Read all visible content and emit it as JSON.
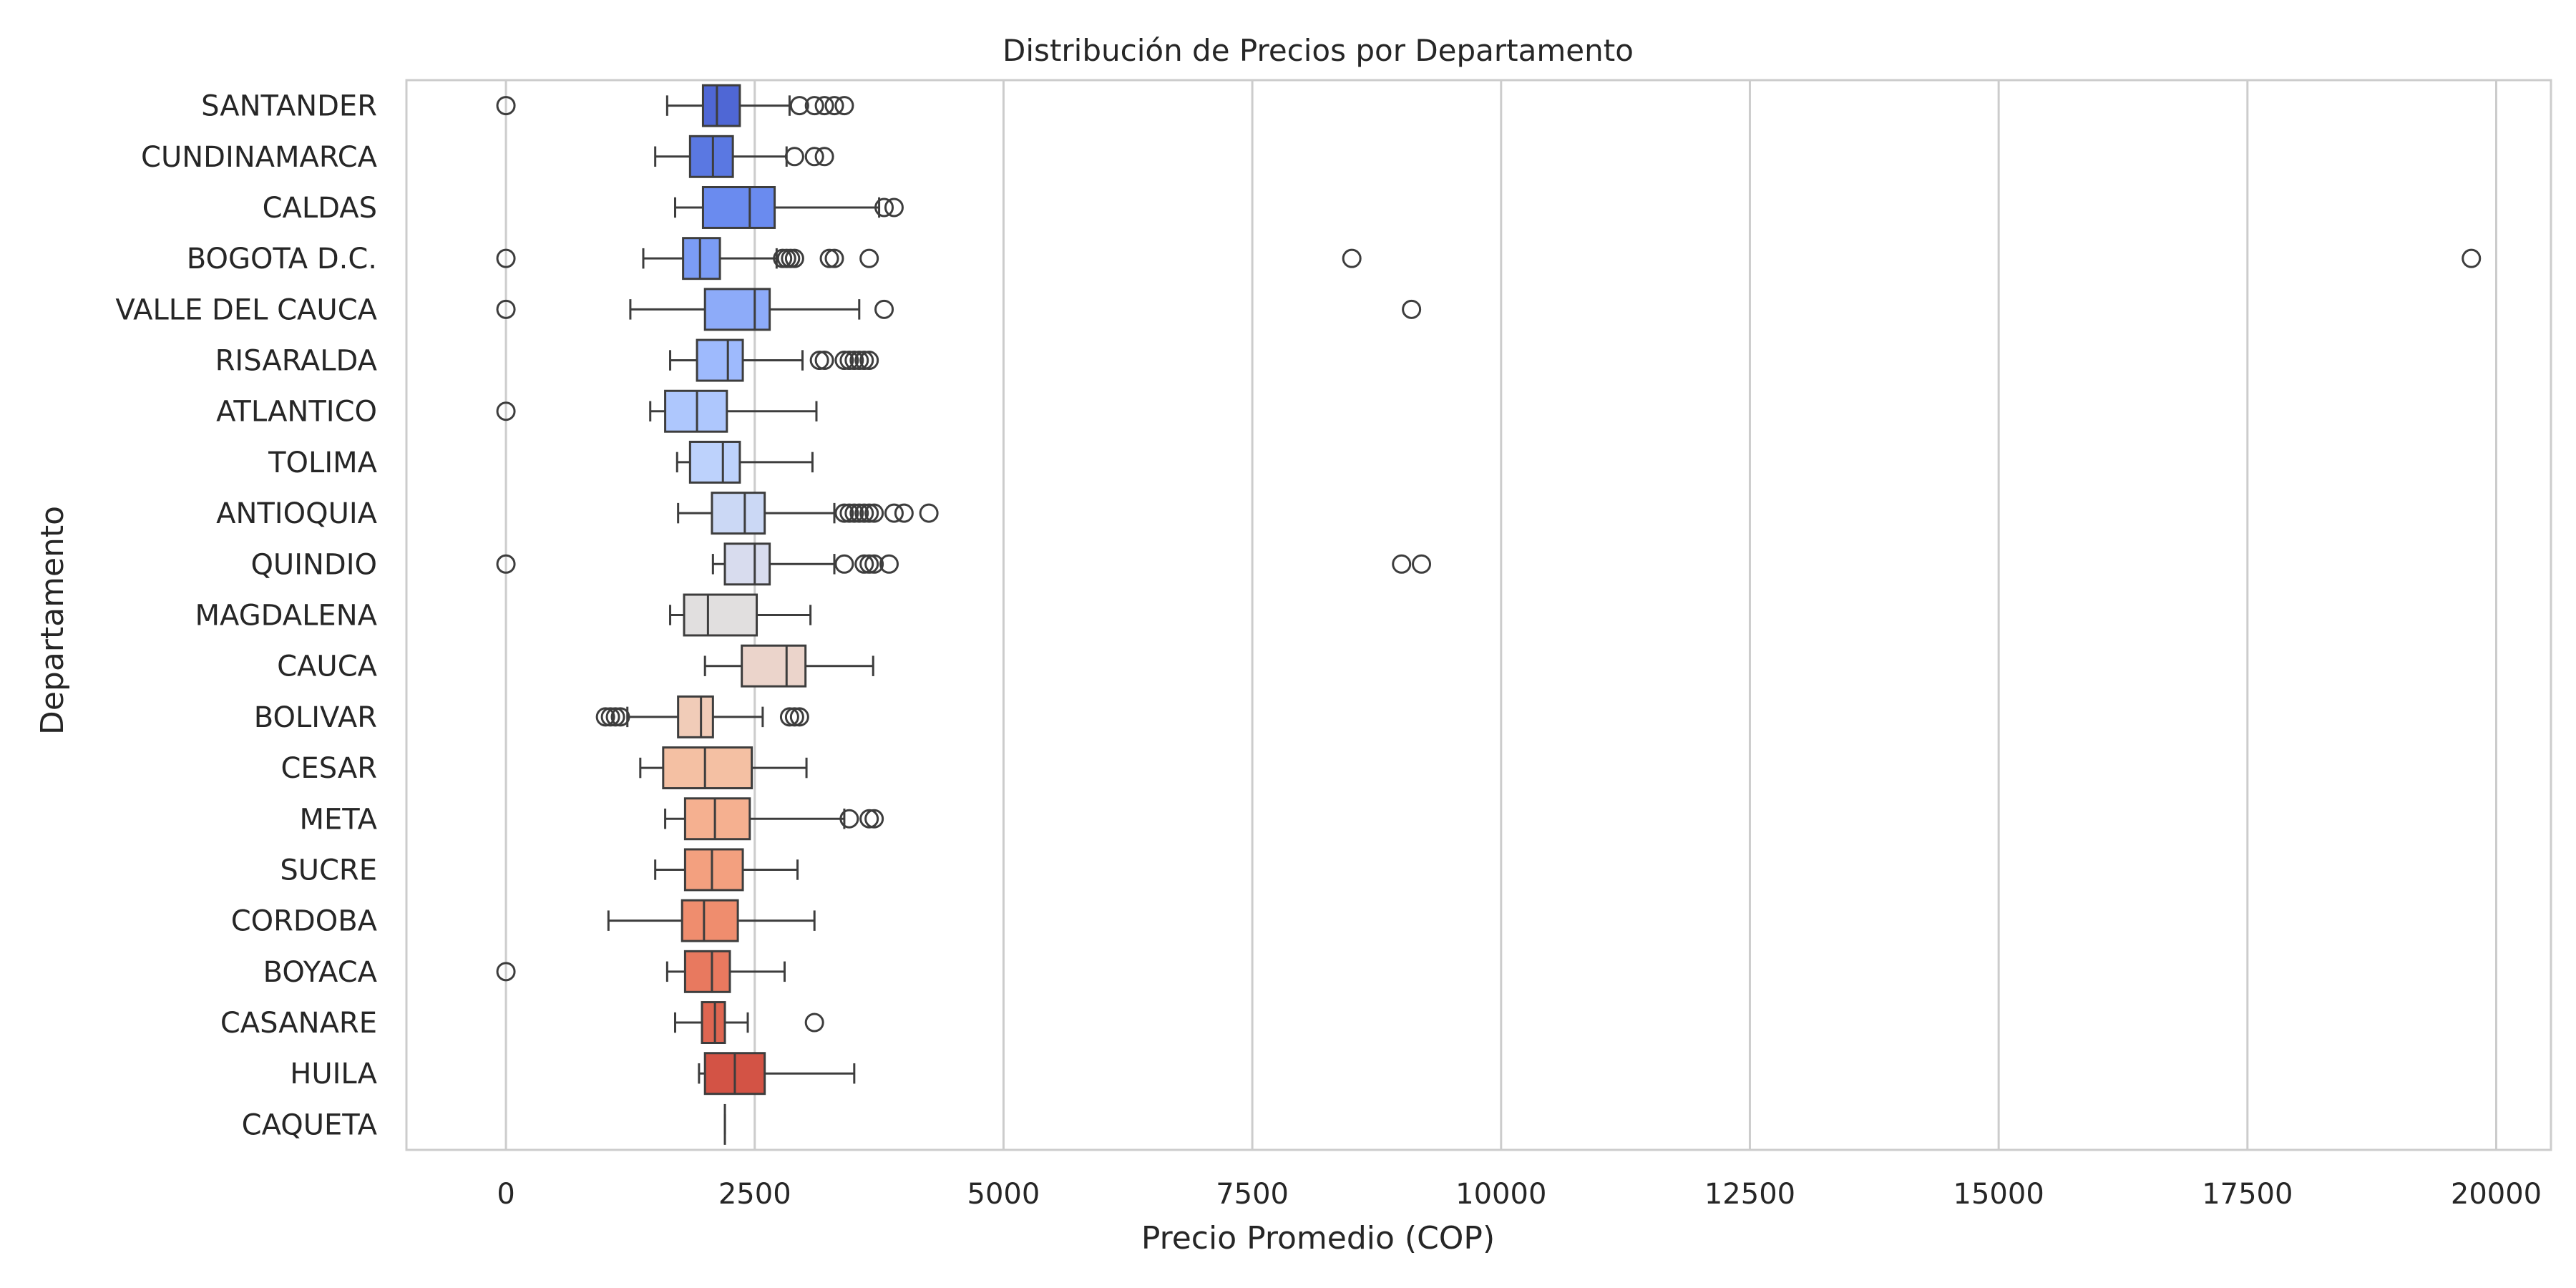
{
  "chart_data": {
    "type": "box",
    "orientation": "horizontal",
    "title": "Distribución de Precios por Departamento",
    "xlabel": "Precio Promedio (COP)",
    "ylabel": "Departamento",
    "xlim": [
      -1000,
      20550
    ],
    "xticks": [
      0,
      2500,
      5000,
      7500,
      10000,
      12500,
      15000,
      17500,
      20000
    ],
    "grid": "vertical",
    "palette": "coolwarm",
    "categories": [
      "SANTANDER",
      "CUNDINAMARCA",
      "CALDAS",
      "BOGOTA D.C.",
      "VALLE DEL CAUCA",
      "RISARALDA",
      "ATLANTICO",
      "TOLIMA",
      "ANTIOQUIA",
      "QUINDIO",
      "MAGDALENA",
      "CAUCA",
      "BOLIVAR",
      "CESAR",
      "META",
      "SUCRE",
      "CORDOBA",
      "BOYACA",
      "CASANARE",
      "HUILA",
      "CAQUETA"
    ],
    "boxes": [
      {
        "category": "SANTANDER",
        "whislo": 1620,
        "q1": 1980,
        "median": 2120,
        "q3": 2350,
        "whishi": 2850,
        "fliers": [
          0,
          2950,
          3100,
          3200,
          3300,
          3400
        ],
        "color": "#4f67d5"
      },
      {
        "category": "CUNDINAMARCA",
        "whislo": 1500,
        "q1": 1850,
        "median": 2080,
        "q3": 2280,
        "whishi": 2820,
        "fliers": [
          2900,
          3100,
          3200
        ],
        "color": "#5a78e2"
      },
      {
        "category": "CALDAS",
        "whislo": 1700,
        "q1": 1980,
        "median": 2450,
        "q3": 2700,
        "whishi": 3750,
        "fliers": [
          3800,
          3900
        ],
        "color": "#6a8bef"
      },
      {
        "category": "BOGOTA D.C.",
        "whislo": 1380,
        "q1": 1780,
        "median": 1950,
        "q3": 2150,
        "whishi": 2720,
        "fliers": [
          0,
          2780,
          2820,
          2860,
          2900,
          3250,
          3300,
          3650,
          8500,
          19750
        ],
        "color": "#7b9cf5"
      },
      {
        "category": "VALLE DEL CAUCA",
        "whislo": 1250,
        "q1": 2000,
        "median": 2500,
        "q3": 2650,
        "whishi": 3550,
        "fliers": [
          0,
          3800,
          9100
        ],
        "color": "#8dabf9"
      },
      {
        "category": "RISARALDA",
        "whislo": 1650,
        "q1": 1920,
        "median": 2230,
        "q3": 2380,
        "whishi": 2980,
        "fliers": [
          3150,
          3200,
          3400,
          3450,
          3500,
          3550,
          3600,
          3650
        ],
        "color": "#9ebafd"
      },
      {
        "category": "ATLANTICO",
        "whislo": 1450,
        "q1": 1600,
        "median": 1920,
        "q3": 2220,
        "whishi": 3120,
        "fliers": [
          0
        ],
        "color": "#aec7fd"
      },
      {
        "category": "TOLIMA",
        "whislo": 1720,
        "q1": 1850,
        "median": 2180,
        "q3": 2350,
        "whishi": 3080,
        "fliers": [],
        "color": "#bdd2fc"
      },
      {
        "category": "ANTIOQUIA",
        "whislo": 1730,
        "q1": 2070,
        "median": 2400,
        "q3": 2600,
        "whishi": 3300,
        "fliers": [
          3400,
          3450,
          3500,
          3550,
          3600,
          3650,
          3700,
          3900,
          4000,
          4250
        ],
        "color": "#cbd8f5"
      },
      {
        "category": "QUINDIO",
        "whislo": 2080,
        "q1": 2200,
        "median": 2500,
        "q3": 2650,
        "whishi": 3300,
        "fliers": [
          0,
          3400,
          3600,
          3650,
          3700,
          3850,
          9000,
          9200
        ],
        "color": "#d8dcee"
      },
      {
        "category": "MAGDALENA",
        "whislo": 1650,
        "q1": 1790,
        "median": 2030,
        "q3": 2520,
        "whishi": 3060,
        "fliers": [],
        "color": "#e1dfdf"
      },
      {
        "category": "CAUCA",
        "whislo": 2000,
        "q1": 2370,
        "median": 2820,
        "q3": 3010,
        "whishi": 3690,
        "fliers": [],
        "color": "#ebd4cb"
      },
      {
        "category": "BOLIVAR",
        "whislo": 1220,
        "q1": 1730,
        "median": 1960,
        "q3": 2080,
        "whishi": 2580,
        "fliers": [
          1000,
          1050,
          1100,
          1150,
          2850,
          2900,
          2950
        ],
        "color": "#f1ccb8"
      },
      {
        "category": "CESAR",
        "whislo": 1350,
        "q1": 1580,
        "median": 2000,
        "q3": 2470,
        "whishi": 3020,
        "fliers": [],
        "color": "#f4c0a3"
      },
      {
        "category": "META",
        "whislo": 1600,
        "q1": 1800,
        "median": 2100,
        "q3": 2450,
        "whishi": 3400,
        "fliers": [
          3450,
          3650,
          3700
        ],
        "color": "#f5b090"
      },
      {
        "category": "SUCRE",
        "whislo": 1500,
        "q1": 1800,
        "median": 2070,
        "q3": 2380,
        "whishi": 2930,
        "fliers": [],
        "color": "#f3a07f"
      },
      {
        "category": "CORDOBA",
        "whislo": 1030,
        "q1": 1770,
        "median": 1990,
        "q3": 2330,
        "whishi": 3100,
        "fliers": [],
        "color": "#ef8d6e"
      },
      {
        "category": "BOYACA",
        "whislo": 1620,
        "q1": 1800,
        "median": 2070,
        "q3": 2250,
        "whishi": 2800,
        "fliers": [
          0
        ],
        "color": "#e8795f"
      },
      {
        "category": "CASANARE",
        "whislo": 1700,
        "q1": 1970,
        "median": 2100,
        "q3": 2200,
        "whishi": 2430,
        "fliers": [
          3100
        ],
        "color": "#df6651"
      },
      {
        "category": "HUILA",
        "whislo": 1940,
        "q1": 2000,
        "median": 2300,
        "q3": 2600,
        "whishi": 3500,
        "fliers": [],
        "color": "#d35345"
      },
      {
        "category": "CAQUETA",
        "whislo": 2200,
        "q1": 2200,
        "median": 2200,
        "q3": 2200,
        "whishi": 2200,
        "fliers": [],
        "color": "#c5433b"
      }
    ]
  }
}
